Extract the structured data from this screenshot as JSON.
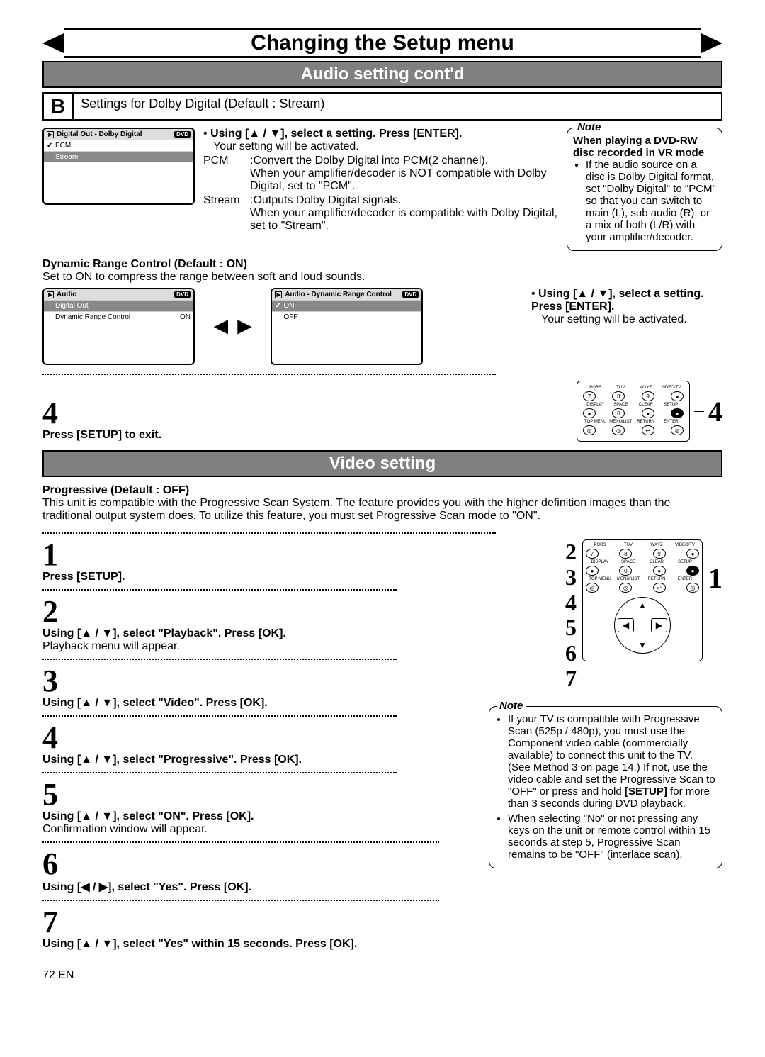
{
  "banner_title": "Changing the Setup menu",
  "audio_section_title": "Audio setting cont'd",
  "video_section_title": "Video setting",
  "b_badge": "B",
  "b_text": "Settings for Dolby Digital (Default : Stream)",
  "dolby_screen": {
    "title": "Digital Out - Dolby Digital",
    "tag": "DVD",
    "rows": [
      {
        "check": "✔",
        "label": "PCM",
        "val": "",
        "sel": false
      },
      {
        "check": "",
        "label": "Stream",
        "val": "",
        "sel": true
      }
    ]
  },
  "dolby_instr_head": "Using [▲ / ▼], select a setting. Press [ENTER].",
  "dolby_instr_sub": "Your setting will be activated.",
  "dolby_pcm_term": "PCM",
  "dolby_pcm_desc": ":Convert the Dolby Digital into PCM(2 channel).\nWhen your amplifier/decoder is NOT compatible with Dolby Digital, set to \"PCM\".",
  "dolby_stream_term": "Stream",
  "dolby_stream_desc": ":Outputs Dolby Digital signals.\nWhen your amplifier/decoder is compatible with Dolby Digital, set to \"Stream\".",
  "note1_label": "Note",
  "note1_head": "When playing a DVD-RW disc recorded in VR mode",
  "note1_body": "If the audio source on a disc is Dolby Digital format, set \"Dolby Digital\" to \"PCM\" so that you can switch to main (L), sub audio (R), or a mix of both (L/R) with your amplifier/decoder.",
  "drc_head": "Dynamic Range Control (Default : ON)",
  "drc_sub": "Set to ON to compress the range between soft and loud sounds.",
  "audio_screen": {
    "title": "Audio",
    "tag": "DVD",
    "rows": [
      {
        "check": "",
        "label": "Digital Out",
        "val": "",
        "sel": true
      },
      {
        "check": "",
        "label": "Dynamic Range Control",
        "val": "ON",
        "sel": false
      }
    ]
  },
  "drc_screen": {
    "title": "Audio - Dynamic Range Control",
    "tag": "DVD",
    "rows": [
      {
        "check": "✔",
        "label": "ON",
        "val": "",
        "sel": true
      },
      {
        "check": "",
        "label": "OFF",
        "val": "",
        "sel": false
      }
    ]
  },
  "drc_instr_head": "Using [▲ / ▼], select a setting. Press [ENTER].",
  "drc_instr_sub": "Your setting will be activated.",
  "step4_num": "4",
  "step4_text": "Press [SETUP] to exit.",
  "callout_4": "4",
  "prog_head": "Progressive (Default : OFF)",
  "prog_sub": "This unit is compatible with the Progressive Scan System. The feature provides you with the higher definition images than the traditional output system does. To utilize this feature, you must set Progressive Scan mode to \"ON\".",
  "callout_1": "1",
  "video_nums": "2\n3\n4\n5\n6\n7",
  "steps": [
    {
      "n": "1",
      "b": "Press [SETUP].",
      "t": ""
    },
    {
      "n": "2",
      "b": "Using [▲ / ▼], select \"Playback\". Press [OK].",
      "t": "Playback menu will appear."
    },
    {
      "n": "3",
      "b": "Using [▲ / ▼], select \"Video\". Press [OK].",
      "t": ""
    },
    {
      "n": "4",
      "b": "Using [▲ / ▼], select \"Progressive\". Press [OK].",
      "t": ""
    },
    {
      "n": "5",
      "b": "Using [▲ / ▼], select \"ON\". Press [OK].",
      "t": "Confirmation window will appear."
    },
    {
      "n": "6",
      "b": "Using [◀ / ▶], select \"Yes\". Press [OK].",
      "t": ""
    },
    {
      "n": "7",
      "b": "Using [▲ / ▼], select \"Yes\" within 15 seconds. Press [OK].",
      "t": ""
    }
  ],
  "note2_label": "Note",
  "note2_items": [
    "If your TV is compatible with Progressive Scan (525p / 480p), you must use the Component video cable (commercially available) to connect this unit to the TV. (See Method 3 on page 14.) If not, use the video cable and set the Progressive Scan to \"OFF\" or press and hold [SETUP] for more than 3 seconds during DVD playback.",
    "When selecting \"No\" or not pressing any keys on the unit or remote control within 15 seconds at step 5, Progressive Scan remains to be \"OFF\" (interlace scan)."
  ],
  "remote": {
    "row1_labels": [
      "PQRS",
      "TUV",
      "WXYZ",
      "VIDEO/TV"
    ],
    "row1_btns": [
      "7",
      "8",
      "9",
      "●"
    ],
    "row2_labels": [
      "DISPLAY",
      "SPACE",
      "CLEAR",
      "SETUP"
    ],
    "row2_btns": [
      "●",
      "0",
      "●",
      "●"
    ],
    "row3_labels": [
      "TOP MENU",
      "MENU/LIST",
      "RETURN",
      "ENTER"
    ],
    "row3_btns": [
      "◎",
      "◎",
      "↩",
      "◎"
    ]
  },
  "page_num": "72   EN",
  "arrow_lr": "◄►",
  "dpad": {
    "up": "▲",
    "dn": "▼",
    "lf": "◀",
    "rt": "▶"
  }
}
